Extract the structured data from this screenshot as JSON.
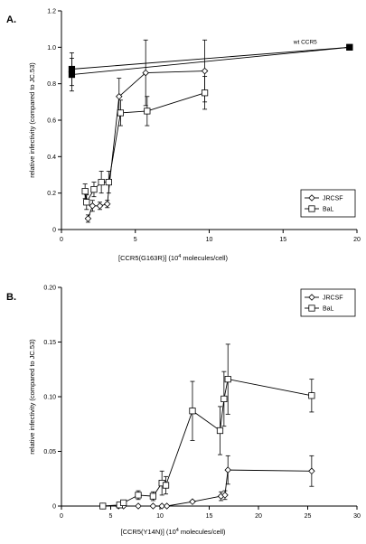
{
  "chart_data": [
    {
      "type": "line",
      "panel_label": "A.",
      "xlabel": "[CCR5(G163R)] (10",
      "xlabel_sup": "4",
      "xlabel_tail": " molecules/cell)",
      "ylabel": "relative infectivity (compared to JC.53)",
      "xlim": [
        0,
        20
      ],
      "ylim": [
        0,
        1.2
      ],
      "xticks": [
        "0",
        "5",
        "10",
        "15",
        "20"
      ],
      "yticks": [
        "0",
        "0.2",
        "0.4",
        "0.6",
        "0.8",
        "1.0",
        "1.2"
      ],
      "xtick_values": [
        0,
        5,
        10,
        15,
        20
      ],
      "ytick_values": [
        0,
        0.2,
        0.4,
        0.6,
        0.8,
        1.0,
        1.2
      ],
      "annotation": {
        "text": "wt CCR5",
        "x": 16.5,
        "y": 1.005
      },
      "legend": {
        "position": "bottom-right",
        "entries": [
          "JRCSF",
          "BaL"
        ]
      },
      "series": [
        {
          "name": "JRCSF",
          "marker": "diamond",
          "points": [
            {
              "x": 0.7,
              "y": 0.88,
              "err": 0.09
            },
            {
              "x": 1.8,
              "y": 0.06,
              "err": 0.02
            },
            {
              "x": 2.1,
              "y": 0.13,
              "err": 0.03
            },
            {
              "x": 2.6,
              "y": 0.13,
              "err": 0.02
            },
            {
              "x": 3.1,
              "y": 0.14,
              "err": 0.02
            },
            {
              "x": 3.9,
              "y": 0.73,
              "err": 0.1
            },
            {
              "x": 5.7,
              "y": 0.86,
              "err": 0.18
            },
            {
              "x": 9.7,
              "y": 0.87,
              "err": 0.17
            },
            {
              "x": 19.5,
              "y": 1.0,
              "err": 0
            }
          ],
          "connect": [
            [
              1,
              2,
              3,
              4,
              5,
              6,
              7
            ],
            [
              0,
              8
            ]
          ]
        },
        {
          "name": "BaL",
          "marker": "square",
          "points": [
            {
              "x": 0.7,
              "y": 0.85,
              "err": 0.09
            },
            {
              "x": 1.6,
              "y": 0.21,
              "err": 0.04
            },
            {
              "x": 1.7,
              "y": 0.15,
              "err": 0.04
            },
            {
              "x": 2.2,
              "y": 0.22,
              "err": 0.04
            },
            {
              "x": 2.7,
              "y": 0.26,
              "err": 0.06
            },
            {
              "x": 3.2,
              "y": 0.26,
              "err": 0.06
            },
            {
              "x": 4.0,
              "y": 0.64,
              "err": 0.07
            },
            {
              "x": 5.8,
              "y": 0.65,
              "err": 0.08
            },
            {
              "x": 9.7,
              "y": 0.75,
              "err": 0.09
            },
            {
              "x": 19.5,
              "y": 1.0,
              "err": 0
            }
          ],
          "connect": [
            [
              1,
              2,
              3,
              4,
              5,
              6,
              7,
              8
            ],
            [
              0,
              9
            ]
          ]
        }
      ]
    },
    {
      "type": "line",
      "panel_label": "B.",
      "xlabel": "[CCR5(Y14N)] (10",
      "xlabel_sup": "4",
      "xlabel_tail": " molecules/cell)",
      "ylabel": "relative infectivity (compared to JC.53)",
      "xlim": [
        0,
        30
      ],
      "ylim": [
        0,
        0.2
      ],
      "xticks": [
        "0",
        "5",
        "10",
        "15",
        "20",
        "25",
        "30"
      ],
      "yticks": [
        "0",
        "0.05",
        "0.10",
        "0.15",
        "0.20"
      ],
      "xtick_values": [
        0,
        5,
        10,
        15,
        20,
        25,
        30
      ],
      "ytick_values": [
        0,
        0.05,
        0.1,
        0.15,
        0.2
      ],
      "legend": {
        "position": "top-right",
        "entries": [
          "JRCSF",
          "BaL"
        ]
      },
      "series": [
        {
          "name": "JRCSF",
          "marker": "diamond",
          "points": [
            {
              "x": 4.2,
              "y": 0.0,
              "err": 0
            },
            {
              "x": 5.8,
              "y": 0.0,
              "err": 0
            },
            {
              "x": 6.3,
              "y": 0.0,
              "err": 0
            },
            {
              "x": 7.8,
              "y": 0.0,
              "err": 0
            },
            {
              "x": 9.3,
              "y": 0.0,
              "err": 0
            },
            {
              "x": 10.2,
              "y": 0.0,
              "err": 0
            },
            {
              "x": 10.7,
              "y": 0.0,
              "err": 0
            },
            {
              "x": 13.3,
              "y": 0.004,
              "err": 0.001
            },
            {
              "x": 16.2,
              "y": 0.009,
              "err": 0.004
            },
            {
              "x": 16.6,
              "y": 0.01,
              "err": 0.004
            },
            {
              "x": 16.9,
              "y": 0.033,
              "err": 0.013
            },
            {
              "x": 25.4,
              "y": 0.032,
              "err": 0.014
            }
          ],
          "connect": [
            [
              0,
              1,
              2,
              3,
              4,
              5,
              6,
              7,
              8,
              9,
              10,
              11
            ]
          ]
        },
        {
          "name": "BaL",
          "marker": "square",
          "points": [
            {
              "x": 4.2,
              "y": 0.0,
              "err": 0
            },
            {
              "x": 5.9,
              "y": 0.001,
              "err": 0.001
            },
            {
              "x": 6.3,
              "y": 0.003,
              "err": 0.002
            },
            {
              "x": 7.8,
              "y": 0.01,
              "err": 0.004
            },
            {
              "x": 9.3,
              "y": 0.009,
              "err": 0.004
            },
            {
              "x": 10.2,
              "y": 0.021,
              "err": 0.011
            },
            {
              "x": 10.6,
              "y": 0.019,
              "err": 0.008
            },
            {
              "x": 13.3,
              "y": 0.087,
              "err": 0.027
            },
            {
              "x": 16.1,
              "y": 0.069,
              "err": 0.022
            },
            {
              "x": 16.5,
              "y": 0.098,
              "err": 0.025
            },
            {
              "x": 16.9,
              "y": 0.116,
              "err": 0.032
            },
            {
              "x": 25.4,
              "y": 0.101,
              "err": 0.015
            }
          ],
          "connect": [
            [
              0,
              1,
              2,
              3,
              4,
              5,
              6,
              7,
              8,
              9,
              10,
              11
            ]
          ]
        }
      ]
    }
  ]
}
